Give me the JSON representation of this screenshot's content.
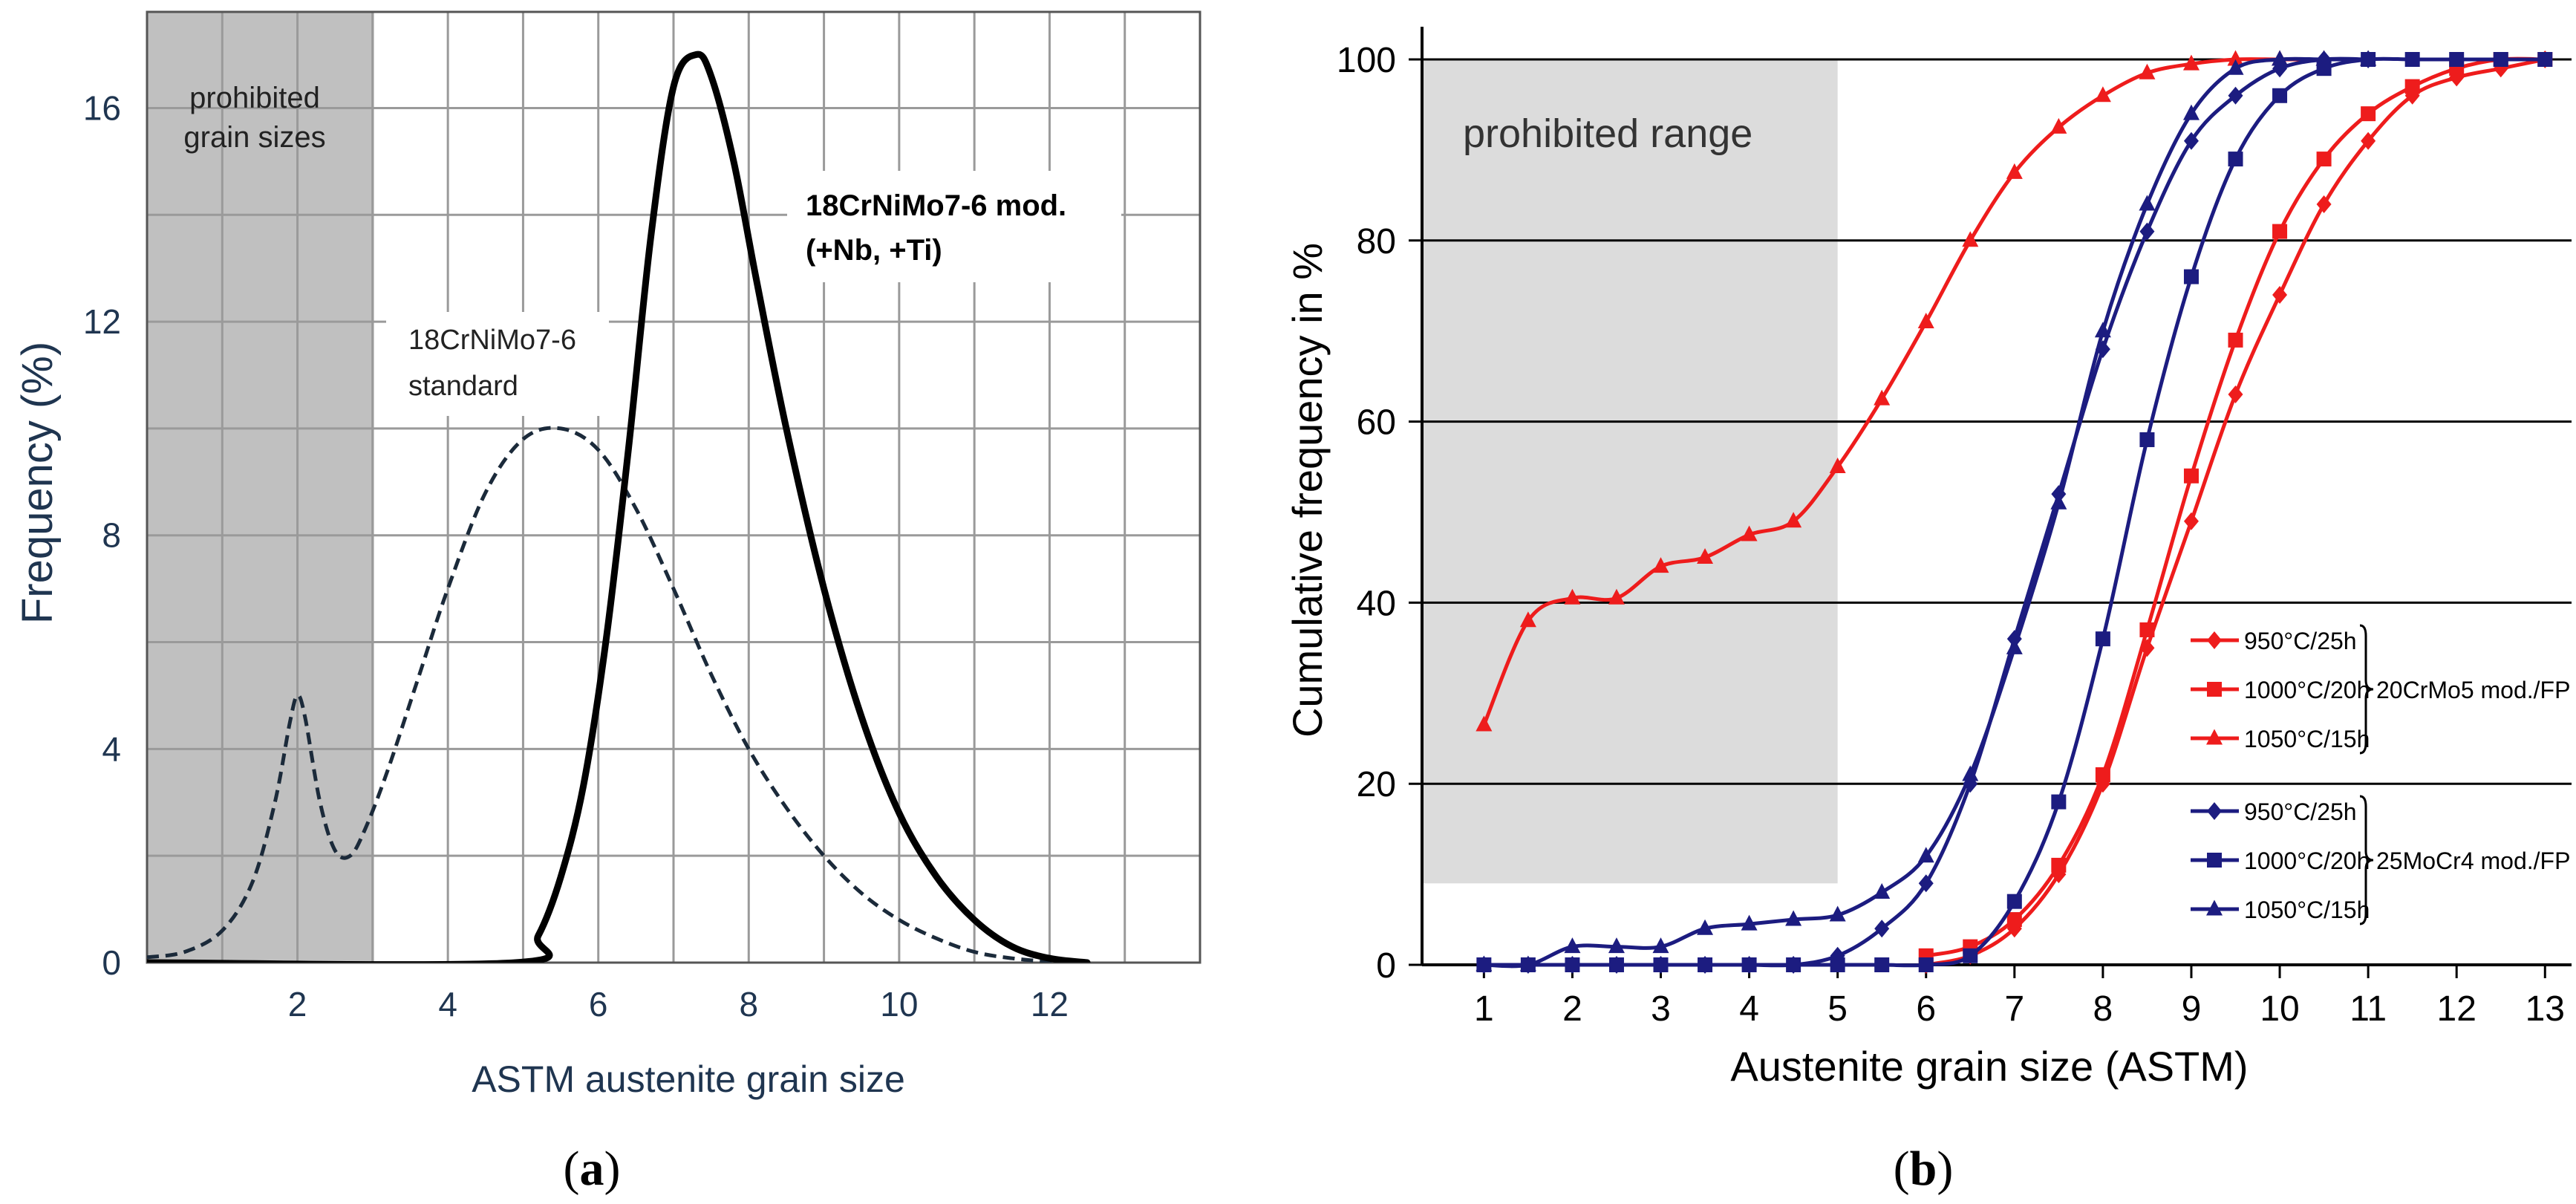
{
  "chart_data": [
    {
      "type": "line",
      "panel_label": "a",
      "xlabel": "ASTM austenite grain size",
      "ylabel": "Frequency (%)",
      "xlim": [
        0,
        14
      ],
      "ylim": [
        0,
        17.8
      ],
      "xticks": [
        2,
        4,
        6,
        8,
        10,
        12
      ],
      "yticks": [
        0,
        4,
        8,
        12,
        16
      ],
      "grid": true,
      "shaded_region": {
        "x": [
          0,
          3
        ],
        "label_line1": "prohibited",
        "label_line2": "grain sizes"
      },
      "annotations": {
        "standard_line1": "18CrNiMo7-6",
        "standard_line2": "standard",
        "modified_line1": "18CrNiMo7-6 mod.",
        "modified_line2": "(+Nb, +Ti)"
      },
      "series": [
        {
          "name": "18CrNiMo7-6 standard",
          "style": "dashed",
          "color": "#1b2a3a",
          "x": [
            0,
            0.5,
            1.0,
            1.4,
            1.7,
            1.9,
            2.0,
            2.1,
            2.3,
            2.5,
            2.7,
            2.9,
            3.2,
            3.6,
            4.0,
            4.5,
            5.0,
            5.5,
            6.0,
            6.5,
            7.0,
            7.5,
            8.0,
            8.5,
            9.0,
            9.5,
            10.0,
            10.5,
            11.0,
            11.5,
            12.0,
            12.5
          ],
          "y": [
            0.1,
            0.2,
            0.6,
            1.5,
            3.0,
            4.5,
            5.0,
            4.6,
            3.0,
            2.1,
            2.0,
            2.5,
            3.6,
            5.3,
            7.0,
            8.8,
            9.8,
            10.0,
            9.6,
            8.5,
            7.0,
            5.4,
            4.0,
            2.9,
            2.0,
            1.3,
            0.8,
            0.45,
            0.2,
            0.08,
            0.02,
            0.0
          ]
        },
        {
          "name": "18CrNiMo7-6 mod. (+Nb, +Ti)",
          "style": "solid-bold",
          "color": "#000000",
          "x": [
            0,
            4.9,
            5.2,
            5.5,
            5.8,
            6.1,
            6.4,
            6.7,
            7.0,
            7.3,
            7.5,
            7.8,
            8.1,
            8.5,
            9.0,
            9.5,
            10.0,
            10.5,
            11.0,
            11.5,
            12.0,
            12.5
          ],
          "y": [
            0.0,
            0.0,
            0.5,
            1.6,
            3.3,
            6.0,
            9.6,
            13.6,
            16.4,
            17.0,
            16.6,
            15.0,
            12.8,
            10.0,
            7.0,
            4.6,
            2.8,
            1.6,
            0.8,
            0.3,
            0.08,
            0.0
          ]
        }
      ]
    },
    {
      "type": "line",
      "panel_label": "b",
      "xlabel": "Austenite grain size (ASTM)",
      "ylabel": "Cumulative frequency in %",
      "xlim": [
        0.3,
        13.3
      ],
      "ylim": [
        0,
        100
      ],
      "xticks": [
        1,
        2,
        3,
        4,
        5,
        6,
        7,
        8,
        9,
        10,
        11,
        12,
        13
      ],
      "yticks": [
        0,
        20,
        40,
        60,
        80,
        100
      ],
      "grid": "horizontal",
      "shaded_region": {
        "x": [
          0.3,
          5
        ],
        "y": [
          9,
          100
        ],
        "label": "prohibited range"
      },
      "legend_groups": [
        {
          "label": "20CrMo5 mod./FP",
          "entries": [
            "950°C/25h",
            "1000°C/20h",
            "1050°C/15h"
          ],
          "color": "#ee1c1c"
        },
        {
          "label": "25MoCr4 mod./FP",
          "entries": [
            "950°C/25h",
            "1000°C/20h",
            "1050°C/15h"
          ],
          "color": "#1c1c80"
        }
      ],
      "series": [
        {
          "name": "20CrMo5 mod./FP 950°C/25h",
          "color": "#ee1c1c",
          "marker": "diamond",
          "x": [
            6.0,
            6.5,
            7.0,
            7.5,
            8.0,
            8.5,
            9.0,
            9.5,
            10.0,
            10.5,
            11.0,
            11.5,
            12.0,
            12.5,
            13.0
          ],
          "y": [
            0,
            1,
            4,
            10,
            20,
            35,
            49,
            63,
            74,
            84,
            91,
            96,
            98,
            99,
            100
          ]
        },
        {
          "name": "20CrMo5 mod./FP 1000°C/20h",
          "color": "#ee1c1c",
          "marker": "square",
          "x": [
            6.0,
            6.5,
            7.0,
            7.5,
            8.0,
            8.5,
            9.0,
            9.5,
            10.0,
            10.5,
            11.0,
            11.5,
            12.0,
            12.5,
            13.0
          ],
          "y": [
            1,
            2,
            5,
            11,
            21,
            37,
            54,
            69,
            81,
            89,
            94,
            97,
            99,
            100,
            100
          ]
        },
        {
          "name": "20CrMo5 mod./FP 1050°C/15h",
          "color": "#ee1c1c",
          "marker": "triangle",
          "x": [
            1.0,
            1.5,
            2.0,
            2.5,
            3.0,
            3.5,
            4.0,
            4.5,
            5.0,
            5.5,
            6.0,
            6.5,
            7.0,
            7.5,
            8.0,
            8.5,
            9.0,
            9.5,
            10.0,
            10.5,
            11.0
          ],
          "y": [
            26.5,
            38,
            40.5,
            40.5,
            44,
            45,
            47.5,
            49,
            55,
            62.5,
            71,
            80,
            87.5,
            92.5,
            96,
            98.5,
            99.5,
            100,
            100,
            100,
            100
          ]
        },
        {
          "name": "25MoCr4 mod./FP 950°C/25h",
          "color": "#1c1c80",
          "marker": "diamond",
          "x": [
            1.0,
            1.5,
            2.0,
            2.5,
            3.0,
            3.5,
            4.0,
            4.5,
            5.0,
            5.5,
            6.0,
            6.5,
            7.0,
            7.5,
            8.0,
            8.5,
            9.0,
            9.5,
            10.0,
            10.5,
            11.0
          ],
          "y": [
            0,
            0,
            0,
            0,
            0,
            0,
            0,
            0,
            1,
            4,
            9,
            20,
            36,
            52,
            68,
            81,
            91,
            96,
            99,
            100,
            100
          ]
        },
        {
          "name": "25MoCr4 mod./FP 1000°C/20h",
          "color": "#1c1c80",
          "marker": "square",
          "x": [
            1.0,
            1.5,
            2.0,
            2.5,
            3.0,
            3.5,
            4.0,
            4.5,
            5.0,
            5.5,
            6.0,
            6.5,
            7.0,
            7.5,
            8.0,
            8.5,
            9.0,
            9.5,
            10.0,
            10.5,
            11.0,
            11.5,
            12.0,
            12.5,
            13.0
          ],
          "y": [
            0,
            0,
            0,
            0,
            0,
            0,
            0,
            0,
            0,
            0,
            0,
            1,
            7,
            18,
            36,
            58,
            76,
            89,
            96,
            99,
            100,
            100,
            100,
            100,
            100
          ]
        },
        {
          "name": "25MoCr4 mod./FP 1050°C/15h",
          "color": "#1c1c80",
          "marker": "triangle",
          "x": [
            1.0,
            1.5,
            2.0,
            2.5,
            3.0,
            3.5,
            4.0,
            4.5,
            5.0,
            5.5,
            6.0,
            6.5,
            7.0,
            7.5,
            8.0,
            8.5,
            9.0,
            9.5,
            10.0,
            10.5,
            11.0
          ],
          "y": [
            0,
            0,
            2,
            2,
            2,
            4,
            4.5,
            5,
            5.5,
            8,
            12,
            21,
            35,
            51,
            70,
            84,
            94,
            99,
            100,
            100,
            100
          ]
        }
      ]
    }
  ]
}
